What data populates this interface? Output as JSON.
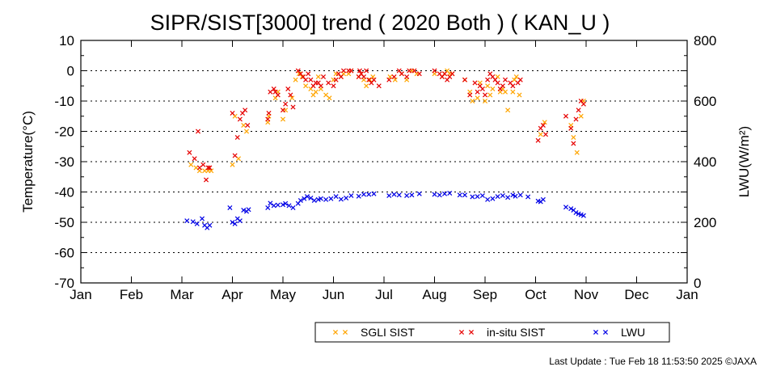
{
  "chart_data": {
    "type": "scatter",
    "title": "SIPR/SIST[3000] trend ( 2020 Both ) ( KAN_U )",
    "xlabel": "",
    "ylabel": "Temperature(°C)",
    "y2label": "LWU(W/m²)",
    "xlim": [
      0,
      12
    ],
    "ylim": [
      -70,
      10
    ],
    "y2lim": [
      0,
      800
    ],
    "grid": true,
    "legend_position": "bottom-right",
    "month_ticks": [
      "Jan",
      "Feb",
      "Mar",
      "Apr",
      "May",
      "Jun",
      "Jul",
      "Aug",
      "Sep",
      "Oct",
      "Nov",
      "Dec",
      "Jan"
    ],
    "y_ticks": [
      "10",
      "0",
      "-10",
      "-20",
      "-30",
      "-40",
      "-50",
      "-60",
      "-70"
    ],
    "y2_ticks": [
      "800",
      "600",
      "400",
      "200",
      "0"
    ],
    "legend": {
      "sgli": "SGLI SIST",
      "insitu": "in-situ SIST",
      "lwu": "LWU"
    },
    "colors": {
      "sgli": "#ffa500",
      "insitu": "#e60000",
      "lwu": "#0000e6"
    },
    "footer": "Last Update : Tue Feb 18 11:53:50 2025  ©JAXA",
    "series": [
      {
        "key": "sgli",
        "name": "SGLI SIST",
        "axis": "left",
        "x": [
          2.18,
          2.28,
          2.35,
          2.45,
          2.52,
          2.58,
          3.0,
          3.05,
          3.12,
          3.22,
          3.28,
          3.7,
          3.72,
          3.85,
          3.9,
          4.0,
          4.05,
          4.18,
          4.25,
          4.32,
          4.38,
          4.45,
          4.55,
          4.6,
          4.65,
          4.7,
          4.75,
          4.85,
          4.92,
          5.0,
          5.05,
          5.15,
          5.2,
          5.3,
          5.35,
          5.5,
          5.55,
          5.6,
          5.65,
          5.72,
          5.78,
          6.12,
          6.22,
          6.35,
          6.45,
          6.55,
          6.65,
          7.0,
          7.15,
          7.2,
          7.25,
          7.3,
          7.35,
          7.6,
          7.7,
          7.75,
          7.85,
          7.9,
          8.0,
          8.05,
          8.1,
          8.15,
          8.25,
          8.3,
          8.35,
          8.4,
          8.45,
          8.55,
          8.58,
          8.62,
          8.68,
          9.1,
          9.18,
          9.7,
          9.75,
          9.82,
          9.9,
          9.95
        ],
        "y": [
          -31,
          -32,
          -33,
          -33,
          -33,
          -33,
          -31,
          -15,
          -29,
          -18,
          -20,
          -17,
          -15,
          -9,
          -7,
          -16,
          -13,
          -9,
          -3,
          -1,
          -2,
          -5,
          -6,
          -8,
          -7,
          -2,
          -6,
          -8,
          -9,
          -3,
          -1,
          -2,
          -1,
          -1,
          0,
          -2,
          -1,
          -3,
          -5,
          -3,
          -2,
          -2,
          -3,
          -1,
          -3,
          0,
          -1,
          -1,
          -2,
          -1,
          0,
          -1,
          -1,
          -3,
          -7,
          -10,
          -9,
          -4,
          -10,
          -5,
          -8,
          -6,
          -2,
          -7,
          -6,
          -7,
          -13,
          -7,
          -3,
          -2,
          -8,
          -21,
          -17,
          -18,
          -22,
          -27,
          -15,
          -10
        ]
      },
      {
        "key": "insitu",
        "name": "in-situ SIST",
        "axis": "left",
        "x": [
          2.15,
          2.25,
          2.32,
          2.35,
          2.42,
          2.48,
          2.52,
          2.55,
          3.0,
          3.05,
          3.1,
          3.15,
          3.2,
          3.25,
          3.3,
          3.7,
          3.72,
          3.75,
          3.82,
          3.85,
          3.9,
          4.0,
          4.05,
          4.1,
          4.15,
          4.2,
          4.3,
          4.35,
          4.4,
          4.45,
          4.5,
          4.55,
          4.6,
          4.65,
          4.7,
          4.75,
          4.8,
          4.9,
          5.0,
          5.05,
          5.1,
          5.15,
          5.2,
          5.3,
          5.35,
          5.5,
          5.52,
          5.55,
          5.6,
          5.65,
          5.7,
          5.75,
          5.8,
          5.9,
          6.1,
          6.2,
          6.3,
          6.35,
          6.45,
          6.5,
          6.6,
          6.7,
          7.0,
          7.1,
          7.15,
          7.2,
          7.25,
          7.3,
          7.35,
          7.6,
          7.7,
          7.8,
          7.85,
          7.9,
          7.95,
          8.0,
          8.05,
          8.1,
          8.15,
          8.2,
          8.25,
          8.3,
          8.35,
          8.4,
          8.5,
          8.55,
          8.65,
          8.7,
          9.05,
          9.1,
          9.15,
          9.2,
          9.6,
          9.7,
          9.75,
          9.8,
          9.85,
          9.9,
          9.95
        ],
        "y": [
          -27,
          -29,
          -20,
          -32,
          -31,
          -36,
          -32,
          -32,
          -14,
          -28,
          -22,
          -16,
          -14,
          -13,
          -18,
          -16,
          -14,
          -7,
          -6,
          -7,
          -8,
          -13,
          -11,
          -6,
          -8,
          -12,
          0,
          -1,
          -2,
          -3,
          -1,
          -3,
          -5,
          -4,
          -4,
          -5,
          -2,
          -4,
          -5,
          -3,
          -1,
          -2,
          0,
          0,
          0,
          -2,
          0,
          -1,
          -2,
          0,
          -3,
          -4,
          -3,
          -5,
          -3,
          -2,
          0,
          -1,
          -2,
          0,
          0,
          -1,
          0,
          -1,
          -2,
          -1,
          -3,
          -2,
          -1,
          -3,
          -8,
          -4,
          -7,
          -5,
          -6,
          -8,
          -3,
          -1,
          -2,
          -3,
          -4,
          -6,
          -5,
          -3,
          -4,
          -5,
          -4,
          -3,
          -23,
          -19,
          -18,
          -21,
          -15,
          -19,
          -24,
          -16,
          -13,
          -10,
          -11
        ]
      },
      {
        "key": "lwu",
        "name": "LWU",
        "axis": "right",
        "x": [
          2.1,
          2.22,
          2.3,
          2.4,
          2.45,
          2.5,
          2.55,
          2.95,
          3.0,
          3.05,
          3.1,
          3.15,
          3.22,
          3.28,
          3.32,
          3.7,
          3.75,
          3.82,
          3.9,
          4.0,
          4.05,
          4.12,
          4.2,
          4.3,
          4.35,
          4.42,
          4.48,
          4.55,
          4.62,
          4.7,
          4.75,
          4.85,
          4.95,
          5.05,
          5.15,
          5.25,
          5.35,
          5.5,
          5.6,
          5.7,
          5.8,
          6.1,
          6.2,
          6.3,
          6.45,
          6.55,
          6.7,
          7.0,
          7.1,
          7.2,
          7.3,
          7.5,
          7.6,
          7.75,
          7.85,
          7.95,
          8.05,
          8.15,
          8.25,
          8.35,
          8.45,
          8.55,
          8.6,
          8.7,
          8.85,
          9.05,
          9.1,
          9.15,
          9.6,
          9.7,
          9.75,
          9.8,
          9.85,
          9.9,
          9.95
        ],
        "y": [
          205,
          202,
          195,
          212,
          190,
          182,
          190,
          248,
          200,
          195,
          212,
          205,
          240,
          236,
          242,
          248,
          263,
          255,
          257,
          258,
          262,
          255,
          248,
          262,
          272,
          278,
          285,
          280,
          272,
          275,
          278,
          275,
          278,
          285,
          276,
          280,
          288,
          286,
          292,
          292,
          294,
          288,
          292,
          290,
          288,
          290,
          294,
          292,
          290,
          294,
          296,
          290,
          290,
          284,
          285,
          288,
          275,
          278,
          285,
          288,
          282,
          290,
          286,
          290,
          284,
          270,
          268,
          275,
          250,
          245,
          240,
          232,
          228,
          225,
          222
        ]
      }
    ]
  }
}
